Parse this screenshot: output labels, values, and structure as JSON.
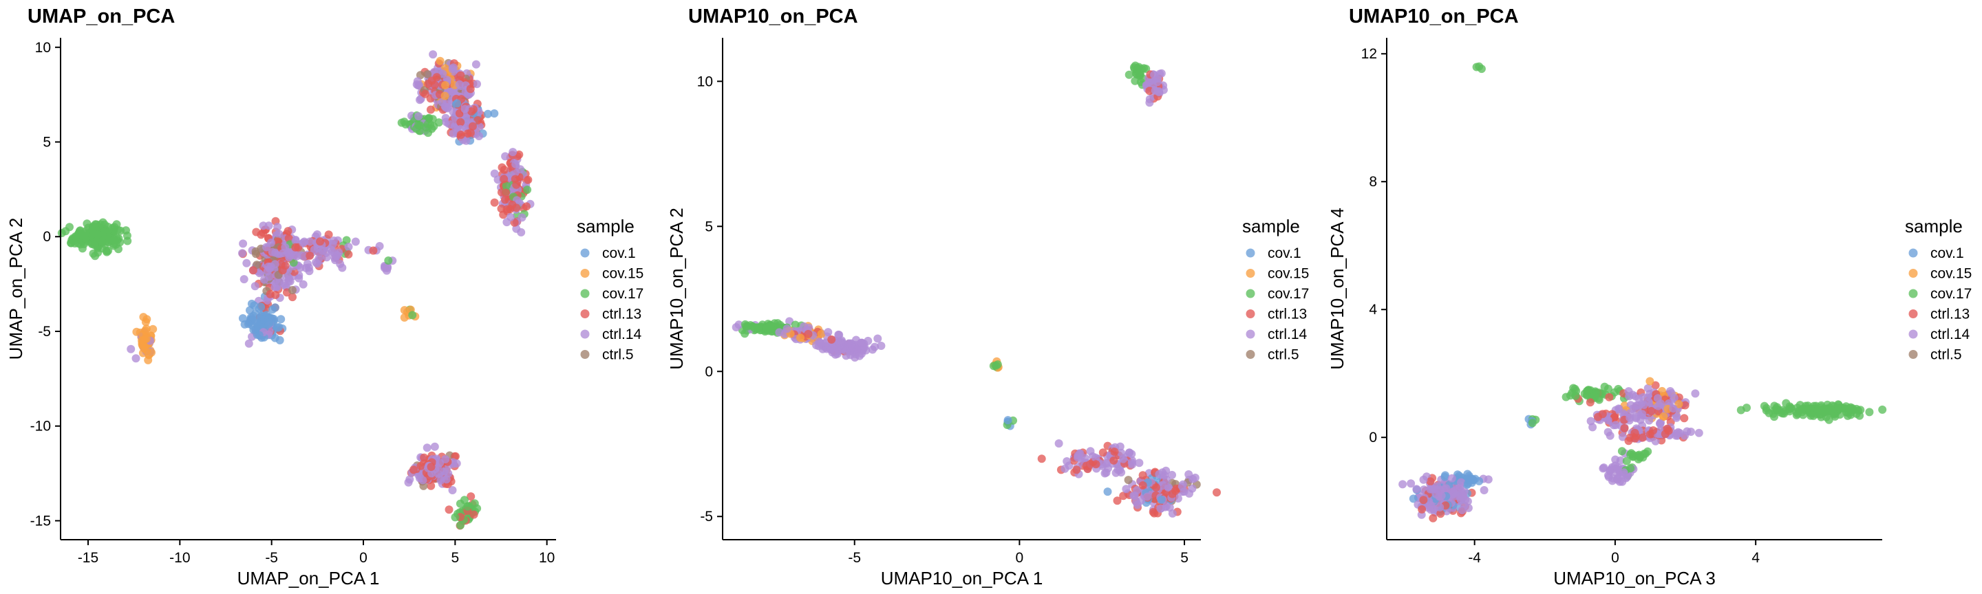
{
  "colors": {
    "cov.1": "#6a9fd8",
    "cov.15": "#f9a043",
    "cov.17": "#5cbf5c",
    "ctrl.13": "#e35a57",
    "ctrl.14": "#b08cd6",
    "ctrl.5": "#a0806c"
  },
  "legend": {
    "title": "sample",
    "items": [
      "cov.1",
      "cov.15",
      "cov.17",
      "ctrl.13",
      "ctrl.14",
      "ctrl.5"
    ]
  },
  "chart_data": [
    {
      "type": "scatter",
      "title": "UMAP_on_PCA",
      "xlabel": "UMAP_on_PCA 1",
      "ylabel": "UMAP_on_PCA 2",
      "xlim": [
        -16.5,
        10.5
      ],
      "ylim": [
        -16.0,
        10.5
      ],
      "xticks": [
        -15,
        -10,
        -5,
        0,
        5,
        10
      ],
      "yticks": [
        -15,
        -10,
        -5,
        0,
        5,
        10
      ],
      "xtick_labels": [
        "-15",
        "-10",
        "-5",
        "0",
        "5",
        "10"
      ],
      "ytick_labels": [
        "-15",
        "-10",
        "-5",
        "0",
        "5",
        "10"
      ],
      "legend_position": "right",
      "clusters": [
        {
          "x": -14.5,
          "y": 0.0,
          "sx": 0.7,
          "sy": 0.35,
          "n": 150,
          "mix": {
            "cov.17": 1
          }
        },
        {
          "x": -11.9,
          "y": -5.5,
          "sx": 0.25,
          "sy": 0.45,
          "n": 60,
          "mix": {
            "cov.15": 0.85,
            "ctrl.14": 0.15
          }
        },
        {
          "x": -5.4,
          "y": -4.5,
          "sx": 0.45,
          "sy": 0.5,
          "n": 110,
          "mix": {
            "cov.1": 0.8,
            "ctrl.14": 0.1,
            "ctrl.13": 0.1
          }
        },
        {
          "x": -4.8,
          "y": -1.2,
          "sx": 0.6,
          "sy": 0.9,
          "n": 240,
          "mix": {
            "ctrl.14": 0.55,
            "ctrl.13": 0.3,
            "ctrl.5": 0.15
          }
        },
        {
          "x": -2.2,
          "y": -0.7,
          "sx": 1.3,
          "sy": 0.5,
          "n": 100,
          "mix": {
            "ctrl.14": 0.6,
            "ctrl.13": 0.3,
            "cov.17": 0.1
          }
        },
        {
          "x": 1.2,
          "y": -1.5,
          "sx": 0.15,
          "sy": 0.3,
          "n": 8,
          "mix": {
            "ctrl.14": 0.6,
            "cov.17": 0.4
          }
        },
        {
          "x": 2.5,
          "y": -4.0,
          "sx": 0.15,
          "sy": 0.15,
          "n": 8,
          "mix": {
            "cov.15": 0.6,
            "cov.17": 0.4
          }
        },
        {
          "x": 4.5,
          "y": 8.0,
          "sx": 0.7,
          "sy": 0.6,
          "n": 260,
          "mix": {
            "ctrl.14": 0.55,
            "ctrl.13": 0.25,
            "cov.15": 0.1,
            "ctrl.5": 0.1
          }
        },
        {
          "x": 3.0,
          "y": 5.9,
          "sx": 0.5,
          "sy": 0.2,
          "n": 50,
          "mix": {
            "cov.17": 0.85,
            "ctrl.14": 0.15
          }
        },
        {
          "x": 5.6,
          "y": 6.3,
          "sx": 0.6,
          "sy": 0.6,
          "n": 120,
          "mix": {
            "ctrl.14": 0.45,
            "ctrl.13": 0.35,
            "cov.1": 0.2
          }
        },
        {
          "x": 8.2,
          "y": 2.5,
          "sx": 0.4,
          "sy": 0.9,
          "n": 150,
          "mix": {
            "ctrl.14": 0.5,
            "ctrl.13": 0.4,
            "cov.17": 0.1
          }
        },
        {
          "x": 3.8,
          "y": -12.3,
          "sx": 0.5,
          "sy": 0.4,
          "n": 150,
          "mix": {
            "ctrl.14": 0.5,
            "ctrl.13": 0.4,
            "ctrl.5": 0.1
          }
        },
        {
          "x": 5.6,
          "y": -14.6,
          "sx": 0.3,
          "sy": 0.4,
          "n": 40,
          "mix": {
            "cov.17": 0.75,
            "ctrl.13": 0.25
          }
        }
      ]
    },
    {
      "type": "scatter",
      "title": "UMAP10_on_PCA",
      "xlabel": "UMAP10_on_PCA 1",
      "ylabel": "UMAP10_on_PCA 2",
      "xlim": [
        -9.0,
        5.5
      ],
      "ylim": [
        -5.8,
        11.5
      ],
      "xticks": [
        -5,
        0,
        5
      ],
      "yticks": [
        -5,
        0,
        5,
        10
      ],
      "xtick_labels": [
        "-5",
        "0",
        "5"
      ],
      "ytick_labels": [
        "-5",
        "0",
        "5",
        "10"
      ],
      "legend_position": "right",
      "clusters": [
        {
          "x": -7.6,
          "y": 1.5,
          "sx": 0.4,
          "sy": 0.08,
          "n": 80,
          "mix": {
            "cov.17": 0.9,
            "ctrl.14": 0.1
          }
        },
        {
          "x": -6.5,
          "y": 1.3,
          "sx": 0.35,
          "sy": 0.12,
          "n": 70,
          "mix": {
            "ctrl.14": 0.6,
            "cov.15": 0.2,
            "ctrl.13": 0.2
          }
        },
        {
          "x": -5.3,
          "y": 0.85,
          "sx": 0.4,
          "sy": 0.15,
          "n": 120,
          "mix": {
            "ctrl.14": 0.9,
            "ctrl.13": 0.1
          }
        },
        {
          "x": -0.7,
          "y": 0.2,
          "sx": 0.05,
          "sy": 0.08,
          "n": 8,
          "mix": {
            "cov.17": 0.6,
            "cov.15": 0.4
          }
        },
        {
          "x": -0.3,
          "y": -1.75,
          "sx": 0.06,
          "sy": 0.06,
          "n": 6,
          "mix": {
            "cov.1": 0.5,
            "cov.17": 0.5
          }
        },
        {
          "x": 2.4,
          "y": -3.1,
          "sx": 0.6,
          "sy": 0.25,
          "n": 90,
          "mix": {
            "ctrl.14": 0.7,
            "ctrl.13": 0.3
          }
        },
        {
          "x": 4.2,
          "y": -4.1,
          "sx": 0.45,
          "sy": 0.35,
          "n": 180,
          "mix": {
            "ctrl.14": 0.5,
            "ctrl.13": 0.35,
            "cov.1": 0.1,
            "ctrl.5": 0.05
          }
        },
        {
          "x": 3.6,
          "y": 10.3,
          "sx": 0.12,
          "sy": 0.15,
          "n": 20,
          "mix": {
            "cov.17": 1
          }
        },
        {
          "x": 4.1,
          "y": 9.8,
          "sx": 0.2,
          "sy": 0.25,
          "n": 40,
          "mix": {
            "ctrl.14": 0.8,
            "ctrl.13": 0.2
          }
        }
      ]
    },
    {
      "type": "scatter",
      "title": "UMAP10_on_PCA",
      "xlabel": "UMAP10_on_PCA 3",
      "ylabel": "UMAP10_on_PCA 4",
      "xlim": [
        -6.5,
        7.6
      ],
      "ylim": [
        -3.2,
        12.5
      ],
      "xticks": [
        -4,
        0,
        4
      ],
      "yticks": [
        0,
        4,
        8,
        12
      ],
      "xtick_labels": [
        "-4",
        "0",
        "4"
      ],
      "ytick_labels": [
        "0",
        "4",
        "8",
        "12"
      ],
      "legend_position": "right",
      "clusters": [
        {
          "x": -3.9,
          "y": 11.6,
          "sx": 0.05,
          "sy": 0.05,
          "n": 3,
          "mix": {
            "cov.17": 1
          }
        },
        {
          "x": -4.9,
          "y": -1.9,
          "sx": 0.4,
          "sy": 0.25,
          "n": 200,
          "mix": {
            "ctrl.14": 0.6,
            "ctrl.13": 0.2,
            "cov.1": 0.2
          }
        },
        {
          "x": -4.2,
          "y": -1.3,
          "sx": 0.3,
          "sy": 0.08,
          "n": 30,
          "mix": {
            "cov.1": 0.8,
            "ctrl.14": 0.2
          }
        },
        {
          "x": -2.4,
          "y": 0.55,
          "sx": 0.06,
          "sy": 0.06,
          "n": 6,
          "mix": {
            "cov.1": 0.6,
            "cov.17": 0.4
          }
        },
        {
          "x": -0.7,
          "y": 1.35,
          "sx": 0.4,
          "sy": 0.12,
          "n": 50,
          "mix": {
            "cov.17": 0.8,
            "ctrl.13": 0.2
          }
        },
        {
          "x": 1.2,
          "y": 1.0,
          "sx": 0.4,
          "sy": 0.25,
          "n": 150,
          "mix": {
            "ctrl.14": 0.6,
            "ctrl.13": 0.2,
            "cov.15": 0.2
          }
        },
        {
          "x": 0.0,
          "y": 0.6,
          "sx": 0.35,
          "sy": 0.12,
          "n": 40,
          "mix": {
            "ctrl.14": 0.8,
            "ctrl.13": 0.2
          }
        },
        {
          "x": 1.0,
          "y": 0.1,
          "sx": 0.6,
          "sy": 0.12,
          "n": 70,
          "mix": {
            "ctrl.14": 0.6,
            "ctrl.13": 0.4
          }
        },
        {
          "x": 0.1,
          "y": -1.0,
          "sx": 0.2,
          "sy": 0.18,
          "n": 40,
          "mix": {
            "ctrl.14": 0.85,
            "cov.17": 0.15
          }
        },
        {
          "x": 0.7,
          "y": -0.5,
          "sx": 0.2,
          "sy": 0.12,
          "n": 15,
          "mix": {
            "cov.17": 1
          }
        },
        {
          "x": 5.7,
          "y": 0.85,
          "sx": 0.7,
          "sy": 0.1,
          "n": 120,
          "mix": {
            "cov.17": 1
          }
        }
      ]
    }
  ]
}
